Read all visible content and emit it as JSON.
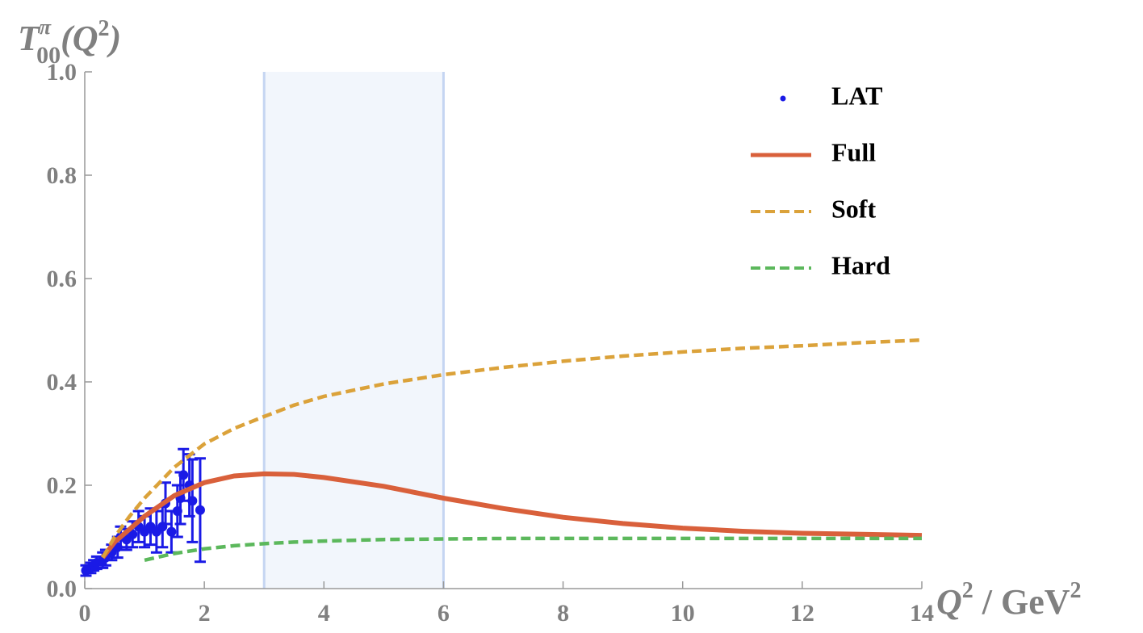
{
  "chart_data": {
    "type": "line",
    "y_label_parts": [
      "T",
      "π",
      "00",
      "(Q",
      "2",
      ")"
    ],
    "x_label_parts": [
      "Q",
      "2",
      " / GeV",
      "2"
    ],
    "xlim": [
      0,
      14
    ],
    "xticks": [
      0,
      2,
      4,
      6,
      8,
      10,
      12,
      14
    ],
    "ylim": [
      0,
      1
    ],
    "yticks": [
      {
        "value": 0,
        "label": "0.0"
      },
      0.2,
      0.4,
      0.6,
      0.8,
      {
        "value": 1,
        "label": "1.0"
      }
    ],
    "band": [
      3,
      6
    ],
    "band_color": "#c5d5f2",
    "legend": "upper right",
    "x": [
      0.3,
      0.5,
      0.75,
      1,
      1.5,
      2,
      2.5,
      3,
      3.5,
      4,
      5,
      6,
      7,
      8,
      9,
      10,
      11,
      12,
      13,
      14
    ],
    "series": [
      {
        "name": "LAT",
        "type": "scatter",
        "color": "#1a1ae6",
        "x": [
          0.02,
          0.1,
          0.15,
          0.2,
          0.3,
          0.35,
          0.45,
          0.55,
          0.6,
          0.7,
          0.8,
          0.9,
          1.0,
          1.1,
          1.2,
          1.3,
          1.35,
          1.45,
          1.55,
          1.6,
          1.65,
          1.75,
          1.8,
          1.93
        ],
        "values": [
          0.035,
          0.04,
          0.045,
          0.05,
          0.055,
          0.06,
          0.07,
          0.08,
          0.1,
          0.095,
          0.105,
          0.12,
          0.11,
          0.12,
          0.11,
          0.12,
          0.165,
          0.11,
          0.15,
          0.175,
          0.22,
          0.2,
          0.17,
          0.152
        ],
        "errors": [
          0.01,
          0.01,
          0.01,
          0.012,
          0.015,
          0.015,
          0.015,
          0.02,
          0.02,
          0.02,
          0.025,
          0.03,
          0.03,
          0.035,
          0.04,
          0.04,
          0.04,
          0.04,
          0.05,
          0.05,
          0.05,
          0.06,
          0.08,
          0.1
        ]
      },
      {
        "name": "Full",
        "color": "#d9603b",
        "dashed": false,
        "values": [
          0.06,
          0.09,
          0.115,
          0.14,
          0.18,
          0.205,
          0.218,
          0.222,
          0.221,
          0.215,
          0.198,
          0.175,
          0.155,
          0.138,
          0.126,
          0.117,
          0.111,
          0.107,
          0.105,
          0.103
        ]
      },
      {
        "name": "Soft",
        "color": "#dba23a",
        "dashed": true,
        "values": [
          0.06,
          0.1,
          0.14,
          0.175,
          0.235,
          0.28,
          0.31,
          0.333,
          0.355,
          0.372,
          0.396,
          0.414,
          0.428,
          0.44,
          0.45,
          0.458,
          0.465,
          0.47,
          0.476,
          0.481
        ]
      },
      {
        "name": "Hard",
        "color": "#5cb85c",
        "dashed": true,
        "values": [
          null,
          null,
          null,
          0.055,
          0.068,
          0.077,
          0.083,
          0.087,
          0.09,
          0.092,
          0.095,
          0.096,
          0.097,
          0.097,
          0.097,
          0.097,
          0.097,
          0.097,
          0.097,
          0.097
        ]
      }
    ]
  }
}
